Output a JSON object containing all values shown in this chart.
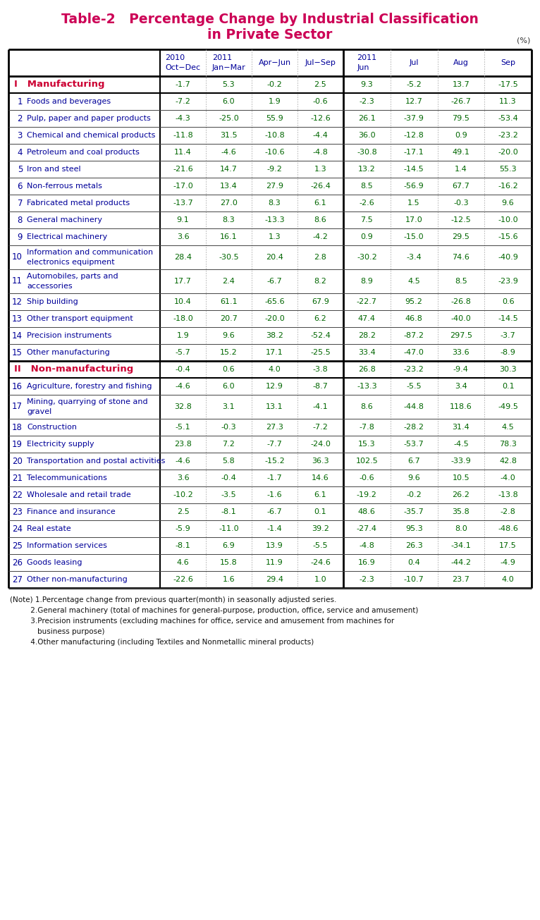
{
  "title_line1": "Table-2   Percentage Change by Industrial Classification",
  "title_line2": "in Private Sector",
  "title_color": "#cc0055",
  "unit_label": "(%)",
  "header_color": "#000099",
  "section_label_color": "#cc0033",
  "normal_label_color": "#000099",
  "value_color": "#006600",
  "rows": [
    {
      "label": "I   Manufacturing",
      "num": "",
      "values": [
        "-1.7",
        "5.3",
        "-0.2",
        "2.5",
        "9.3",
        "-5.2",
        "13.7",
        "-17.5"
      ],
      "style": "section",
      "lines": 1
    },
    {
      "label": "Foods and beverages",
      "num": "1",
      "values": [
        "-7.2",
        "6.0",
        "1.9",
        "-0.6",
        "-2.3",
        "12.7",
        "-26.7",
        "11.3"
      ],
      "style": "normal",
      "lines": 1
    },
    {
      "label": "Pulp, paper and paper products",
      "num": "2",
      "values": [
        "-4.3",
        "-25.0",
        "55.9",
        "-12.6",
        "26.1",
        "-37.9",
        "79.5",
        "-53.4"
      ],
      "style": "normal",
      "lines": 1
    },
    {
      "label": "Chemical and chemical products",
      "num": "3",
      "values": [
        "-11.8",
        "31.5",
        "-10.8",
        "-4.4",
        "36.0",
        "-12.8",
        "0.9",
        "-23.2"
      ],
      "style": "normal",
      "lines": 1
    },
    {
      "label": "Petroleum and coal products",
      "num": "4",
      "values": [
        "11.4",
        "-4.6",
        "-10.6",
        "-4.8",
        "-30.8",
        "-17.1",
        "49.1",
        "-20.0"
      ],
      "style": "normal",
      "lines": 1
    },
    {
      "label": "Iron and steel",
      "num": "5",
      "values": [
        "-21.6",
        "14.7",
        "-9.2",
        "1.3",
        "13.2",
        "-14.5",
        "1.4",
        "55.3"
      ],
      "style": "normal",
      "lines": 1
    },
    {
      "label": "Non-ferrous metals",
      "num": "6",
      "values": [
        "-17.0",
        "13.4",
        "27.9",
        "-26.4",
        "8.5",
        "-56.9",
        "67.7",
        "-16.2"
      ],
      "style": "normal",
      "lines": 1
    },
    {
      "label": "Fabricated metal products",
      "num": "7",
      "values": [
        "-13.7",
        "27.0",
        "8.3",
        "6.1",
        "-2.6",
        "1.5",
        "-0.3",
        "9.6"
      ],
      "style": "normal",
      "lines": 1
    },
    {
      "label": "General machinery",
      "num": "8",
      "values": [
        "9.1",
        "8.3",
        "-13.3",
        "8.6",
        "7.5",
        "17.0",
        "-12.5",
        "-10.0"
      ],
      "style": "normal",
      "lines": 1
    },
    {
      "label": "Electrical machinery",
      "num": "9",
      "values": [
        "3.6",
        "16.1",
        "1.3",
        "-4.2",
        "0.9",
        "-15.0",
        "29.5",
        "-15.6"
      ],
      "style": "normal",
      "lines": 1
    },
    {
      "label": "Information and communication\nelectronics equipment",
      "num": "10",
      "values": [
        "28.4",
        "-30.5",
        "20.4",
        "2.8",
        "-30.2",
        "-3.4",
        "74.6",
        "-40.9"
      ],
      "style": "normal",
      "lines": 2
    },
    {
      "label": "Automobiles, parts and\naccessories",
      "num": "11",
      "values": [
        "17.7",
        "2.4",
        "-6.7",
        "8.2",
        "8.9",
        "4.5",
        "8.5",
        "-23.9"
      ],
      "style": "normal",
      "lines": 2
    },
    {
      "label": "Ship building",
      "num": "12",
      "values": [
        "10.4",
        "61.1",
        "-65.6",
        "67.9",
        "-22.7",
        "95.2",
        "-26.8",
        "0.6"
      ],
      "style": "normal",
      "lines": 1
    },
    {
      "label": "Other transport equipment",
      "num": "13",
      "values": [
        "-18.0",
        "20.7",
        "-20.0",
        "6.2",
        "47.4",
        "46.8",
        "-40.0",
        "-14.5"
      ],
      "style": "normal",
      "lines": 1
    },
    {
      "label": "Precision instruments",
      "num": "14",
      "values": [
        "1.9",
        "9.6",
        "38.2",
        "-52.4",
        "28.2",
        "-87.2",
        "297.5",
        "-3.7"
      ],
      "style": "normal",
      "lines": 1
    },
    {
      "label": "Other manufacturing",
      "num": "15",
      "values": [
        "-5.7",
        "15.2",
        "17.1",
        "-25.5",
        "33.4",
        "-47.0",
        "33.6",
        "-8.9"
      ],
      "style": "normal",
      "lines": 1
    },
    {
      "label": "II   Non-manufacturing",
      "num": "",
      "values": [
        "-0.4",
        "0.6",
        "4.0",
        "-3.8",
        "26.8",
        "-23.2",
        "-9.4",
        "30.3"
      ],
      "style": "section",
      "lines": 1
    },
    {
      "label": "Agriculture, forestry and fishing",
      "num": "16",
      "values": [
        "-4.6",
        "6.0",
        "12.9",
        "-8.7",
        "-13.3",
        "-5.5",
        "3.4",
        "0.1"
      ],
      "style": "normal",
      "lines": 1
    },
    {
      "label": "Mining, quarrying of stone and\ngravel",
      "num": "17",
      "values": [
        "32.8",
        "3.1",
        "13.1",
        "-4.1",
        "8.6",
        "-44.8",
        "118.6",
        "-49.5"
      ],
      "style": "normal",
      "lines": 2
    },
    {
      "label": "Construction",
      "num": "18",
      "values": [
        "-5.1",
        "-0.3",
        "27.3",
        "-7.2",
        "-7.8",
        "-28.2",
        "31.4",
        "4.5"
      ],
      "style": "normal",
      "lines": 1
    },
    {
      "label": "Electricity supply",
      "num": "19",
      "values": [
        "23.8",
        "7.2",
        "-7.7",
        "-24.0",
        "15.3",
        "-53.7",
        "-4.5",
        "78.3"
      ],
      "style": "normal",
      "lines": 1
    },
    {
      "label": "Transportation and postal activities",
      "num": "20",
      "values": [
        "-4.6",
        "5.8",
        "-15.2",
        "36.3",
        "102.5",
        "6.7",
        "-33.9",
        "42.8"
      ],
      "style": "normal",
      "lines": 1
    },
    {
      "label": "Telecommunications",
      "num": "21",
      "values": [
        "3.6",
        "-0.4",
        "-1.7",
        "14.6",
        "-0.6",
        "9.6",
        "10.5",
        "-4.0"
      ],
      "style": "normal",
      "lines": 1
    },
    {
      "label": "Wholesale and retail trade",
      "num": "22",
      "values": [
        "-10.2",
        "-3.5",
        "-1.6",
        "6.1",
        "-19.2",
        "-0.2",
        "26.2",
        "-13.8"
      ],
      "style": "normal",
      "lines": 1
    },
    {
      "label": "Finance and insurance",
      "num": "23",
      "values": [
        "2.5",
        "-8.1",
        "-6.7",
        "0.1",
        "48.6",
        "-35.7",
        "35.8",
        "-2.8"
      ],
      "style": "normal",
      "lines": 1
    },
    {
      "label": "Real estate",
      "num": "24",
      "values": [
        "-5.9",
        "-11.0",
        "-1.4",
        "39.2",
        "-27.4",
        "95.3",
        "8.0",
        "-48.6"
      ],
      "style": "normal",
      "lines": 1
    },
    {
      "label": "Information services",
      "num": "25",
      "values": [
        "-8.1",
        "6.9",
        "13.9",
        "-5.5",
        "-4.8",
        "26.3",
        "-34.1",
        "17.5"
      ],
      "style": "normal",
      "lines": 1
    },
    {
      "label": "Goods leasing",
      "num": "26",
      "values": [
        "4.6",
        "15.8",
        "11.9",
        "-24.6",
        "16.9",
        "0.4",
        "-44.2",
        "-4.9"
      ],
      "style": "normal",
      "lines": 1
    },
    {
      "label": "Other non-manufacturing",
      "num": "27",
      "values": [
        "-22.6",
        "1.6",
        "29.4",
        "1.0",
        "-2.3",
        "-10.7",
        "23.7",
        "4.0"
      ],
      "style": "normal",
      "lines": 1
    }
  ],
  "notes": [
    "(Note) 1.Percentage change from previous quarter(month) in seasonally adjusted series.",
    "         2.General machinery (total of machines for general-purpose, production, office, service and amusement)",
    "         3.Precision instruments (excluding machines for office, service and amusement from machines for",
    "            business purpose)",
    "         4.Other manufacturing (including Textiles and Nonmetallic mineral products)"
  ]
}
